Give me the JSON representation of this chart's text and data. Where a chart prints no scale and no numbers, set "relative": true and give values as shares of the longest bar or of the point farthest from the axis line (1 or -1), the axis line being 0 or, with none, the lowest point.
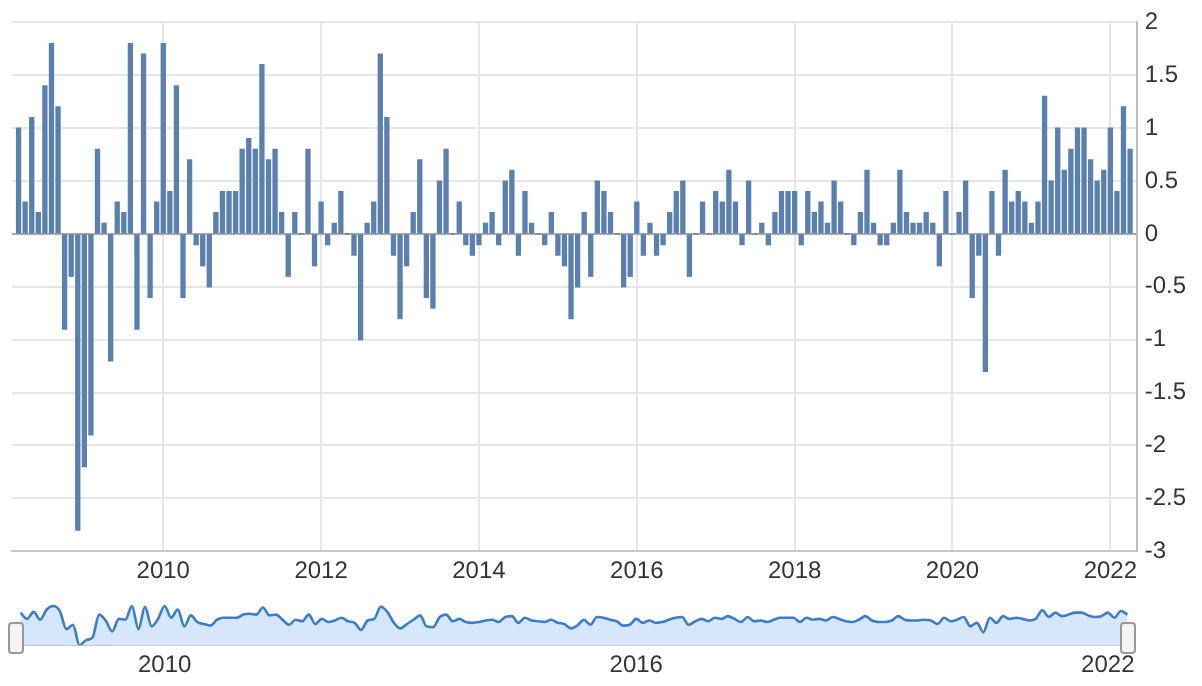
{
  "chart_data": [
    {
      "type": "bar",
      "color": "#5b80ad",
      "ylim": [
        -3,
        2
      ],
      "yticks": [
        -3,
        -2.5,
        -2,
        -1.5,
        -1,
        -0.5,
        0,
        0.5,
        1,
        1.5,
        2
      ],
      "xlim": [
        "2008-02",
        "2022-05"
      ],
      "xticks": [
        "2010",
        "2012",
        "2014",
        "2016",
        "2018",
        "2020",
        "2022"
      ],
      "grid": true,
      "legend": false,
      "x": [
        "2008-03",
        "2008-04",
        "2008-05",
        "2008-06",
        "2008-07",
        "2008-08",
        "2008-09",
        "2008-10",
        "2008-11",
        "2008-12",
        "2009-01",
        "2009-02",
        "2009-03",
        "2009-04",
        "2009-05",
        "2009-06",
        "2009-07",
        "2009-08",
        "2009-09",
        "2009-10",
        "2009-11",
        "2009-12",
        "2010-01",
        "2010-02",
        "2010-03",
        "2010-04",
        "2010-05",
        "2010-06",
        "2010-07",
        "2010-08",
        "2010-09",
        "2010-10",
        "2010-11",
        "2010-12",
        "2011-01",
        "2011-02",
        "2011-03",
        "2011-04",
        "2011-05",
        "2011-06",
        "2011-07",
        "2011-08",
        "2011-09",
        "2011-10",
        "2011-11",
        "2011-12",
        "2012-01",
        "2012-02",
        "2012-03",
        "2012-04",
        "2012-05",
        "2012-06",
        "2012-07",
        "2012-08",
        "2012-09",
        "2012-10",
        "2012-11",
        "2012-12",
        "2013-01",
        "2013-02",
        "2013-03",
        "2013-04",
        "2013-05",
        "2013-06",
        "2013-07",
        "2013-08",
        "2013-09",
        "2013-10",
        "2013-11",
        "2013-12",
        "2014-01",
        "2014-02",
        "2014-03",
        "2014-04",
        "2014-05",
        "2014-06",
        "2014-07",
        "2014-08",
        "2014-09",
        "2014-10",
        "2014-11",
        "2014-12",
        "2015-01",
        "2015-02",
        "2015-03",
        "2015-04",
        "2015-05",
        "2015-06",
        "2015-07",
        "2015-08",
        "2015-09",
        "2015-10",
        "2015-11",
        "2015-12",
        "2016-01",
        "2016-02",
        "2016-03",
        "2016-04",
        "2016-05",
        "2016-06",
        "2016-07",
        "2016-08",
        "2016-09",
        "2016-10",
        "2016-11",
        "2016-12",
        "2017-01",
        "2017-02",
        "2017-03",
        "2017-04",
        "2017-05",
        "2017-06",
        "2017-07",
        "2017-08",
        "2017-09",
        "2017-10",
        "2017-11",
        "2017-12",
        "2018-01",
        "2018-02",
        "2018-03",
        "2018-04",
        "2018-05",
        "2018-06",
        "2018-07",
        "2018-08",
        "2018-09",
        "2018-10",
        "2018-11",
        "2018-12",
        "2019-01",
        "2019-02",
        "2019-03",
        "2019-04",
        "2019-05",
        "2019-06",
        "2019-07",
        "2019-08",
        "2019-09",
        "2019-10",
        "2019-11",
        "2019-12",
        "2020-01",
        "2020-02",
        "2020-03",
        "2020-04",
        "2020-05",
        "2020-06",
        "2020-07",
        "2020-08",
        "2020-09",
        "2020-10",
        "2020-11",
        "2020-12",
        "2021-01",
        "2021-02",
        "2021-03",
        "2021-04",
        "2021-05",
        "2021-06",
        "2021-07",
        "2021-08",
        "2021-09",
        "2021-10",
        "2021-11",
        "2021-12",
        "2022-01",
        "2022-02",
        "2022-03",
        "2022-04"
      ],
      "values": [
        1.0,
        0.3,
        1.1,
        0.2,
        1.4,
        1.8,
        1.2,
        -0.9,
        -0.4,
        -2.8,
        -2.2,
        -1.9,
        0.8,
        0.1,
        -1.2,
        0.3,
        0.2,
        1.8,
        -0.9,
        1.7,
        -0.6,
        0.3,
        1.8,
        0.4,
        1.4,
        -0.6,
        0.7,
        -0.1,
        -0.3,
        -0.5,
        0.2,
        0.4,
        0.4,
        0.4,
        0.8,
        0.9,
        0.8,
        1.6,
        0.7,
        0.8,
        0.2,
        -0.4,
        0.2,
        0,
        0.8,
        -0.3,
        0.3,
        -0.1,
        0.1,
        0.4,
        0,
        -0.2,
        -1.0,
        0.1,
        0.3,
        1.7,
        1.1,
        -0.2,
        -0.8,
        -0.3,
        0.2,
        0.7,
        -0.6,
        -0.7,
        0.5,
        0.8,
        0,
        0.3,
        -0.1,
        -0.2,
        -0.1,
        0.1,
        0.2,
        -0.1,
        0.5,
        0.6,
        -0.2,
        0.4,
        0.1,
        0,
        -0.1,
        0.2,
        -0.2,
        -0.3,
        -0.8,
        -0.5,
        0.2,
        -0.4,
        0.5,
        0.4,
        0.2,
        0,
        -0.5,
        -0.4,
        0.3,
        -0.2,
        0.1,
        -0.2,
        -0.1,
        0.2,
        0.4,
        0.5,
        -0.4,
        0,
        0.3,
        0,
        0.4,
        0.3,
        0.6,
        0.3,
        -0.1,
        0.5,
        0,
        0.1,
        -0.1,
        0.2,
        0.4,
        0.4,
        0.4,
        -0.1,
        0.4,
        0.2,
        0.3,
        0.1,
        0.5,
        0.3,
        0,
        -0.1,
        0.2,
        0.6,
        0.1,
        -0.1,
        -0.1,
        0.1,
        0.6,
        0.2,
        0.1,
        0.1,
        0.2,
        0.1,
        -0.3,
        0.4,
        0,
        0.2,
        0.5,
        -0.6,
        -0.2,
        -1.3,
        0.4,
        -0.2,
        0.6,
        0.3,
        0.4,
        0.3,
        0.1,
        0.3,
        1.3,
        0.5,
        1.0,
        0.6,
        0.8,
        1.0,
        1.0,
        0.7,
        0.5,
        0.6,
        1.0,
        0.4,
        1.2,
        0.8
      ]
    },
    {
      "type": "area",
      "relative": true,
      "color": "#3b7dc9",
      "xlim": [
        "2008-02",
        "2022-05"
      ],
      "xticks": [
        "2010",
        "2016",
        "2022"
      ],
      "tick_labels": "x",
      "legend": false,
      "x": [
        "2008-03",
        "2008-04",
        "2008-05",
        "2008-06",
        "2008-07",
        "2008-08",
        "2008-09",
        "2008-10",
        "2008-11",
        "2008-12",
        "2009-01",
        "2009-02",
        "2009-03",
        "2009-04",
        "2009-05",
        "2009-06",
        "2009-07",
        "2009-08",
        "2009-09",
        "2009-10",
        "2009-11",
        "2009-12",
        "2010-01",
        "2010-02",
        "2010-03",
        "2010-04",
        "2010-05",
        "2010-06",
        "2010-07",
        "2010-08",
        "2010-09",
        "2010-10",
        "2010-11",
        "2010-12",
        "2011-01",
        "2011-02",
        "2011-03",
        "2011-04",
        "2011-05",
        "2011-06",
        "2011-07",
        "2011-08",
        "2011-09",
        "2011-10",
        "2011-11",
        "2011-12",
        "2012-01",
        "2012-02",
        "2012-03",
        "2012-04",
        "2012-05",
        "2012-06",
        "2012-07",
        "2012-08",
        "2012-09",
        "2012-10",
        "2012-11",
        "2012-12",
        "2013-01",
        "2013-02",
        "2013-03",
        "2013-04",
        "2013-05",
        "2013-06",
        "2013-07",
        "2013-08",
        "2013-09",
        "2013-10",
        "2013-11",
        "2013-12",
        "2014-01",
        "2014-02",
        "2014-03",
        "2014-04",
        "2014-05",
        "2014-06",
        "2014-07",
        "2014-08",
        "2014-09",
        "2014-10",
        "2014-11",
        "2014-12",
        "2015-01",
        "2015-02",
        "2015-03",
        "2015-04",
        "2015-05",
        "2015-06",
        "2015-07",
        "2015-08",
        "2015-09",
        "2015-10",
        "2015-11",
        "2015-12",
        "2016-01",
        "2016-02",
        "2016-03",
        "2016-04",
        "2016-05",
        "2016-06",
        "2016-07",
        "2016-08",
        "2016-09",
        "2016-10",
        "2016-11",
        "2016-12",
        "2017-01",
        "2017-02",
        "2017-03",
        "2017-04",
        "2017-05",
        "2017-06",
        "2017-07",
        "2017-08",
        "2017-09",
        "2017-10",
        "2017-11",
        "2017-12",
        "2018-01",
        "2018-02",
        "2018-03",
        "2018-04",
        "2018-05",
        "2018-06",
        "2018-07",
        "2018-08",
        "2018-09",
        "2018-10",
        "2018-11",
        "2018-12",
        "2019-01",
        "2019-02",
        "2019-03",
        "2019-04",
        "2019-05",
        "2019-06",
        "2019-07",
        "2019-08",
        "2019-09",
        "2019-10",
        "2019-11",
        "2019-12",
        "2020-01",
        "2020-02",
        "2020-03",
        "2020-04",
        "2020-05",
        "2020-06",
        "2020-07",
        "2020-08",
        "2020-09",
        "2020-10",
        "2020-11",
        "2020-12",
        "2021-01",
        "2021-02",
        "2021-03",
        "2021-04",
        "2021-05",
        "2021-06",
        "2021-07",
        "2021-08",
        "2021-09",
        "2021-10",
        "2021-11",
        "2021-12",
        "2022-01",
        "2022-02",
        "2022-03",
        "2022-04"
      ],
      "values": [
        0.83,
        0.67,
        0.85,
        0.65,
        0.91,
        1,
        0.87,
        0.41,
        0.52,
        0,
        0.13,
        0.2,
        0.78,
        0.63,
        0.35,
        0.67,
        0.65,
        1,
        0.41,
        0.98,
        0.48,
        0.67,
        1,
        0.7,
        0.91,
        0.48,
        0.76,
        0.59,
        0.54,
        0.5,
        0.65,
        0.7,
        0.7,
        0.7,
        0.78,
        0.8,
        0.78,
        0.96,
        0.76,
        0.78,
        0.65,
        0.52,
        0.65,
        0.61,
        0.78,
        0.54,
        0.67,
        0.59,
        0.63,
        0.7,
        0.61,
        0.57,
        0.39,
        0.63,
        0.67,
        0.98,
        0.85,
        0.57,
        0.43,
        0.54,
        0.65,
        0.76,
        0.48,
        0.46,
        0.72,
        0.78,
        0.61,
        0.67,
        0.59,
        0.57,
        0.59,
        0.63,
        0.65,
        0.59,
        0.72,
        0.74,
        0.57,
        0.7,
        0.63,
        0.61,
        0.59,
        0.65,
        0.57,
        0.54,
        0.43,
        0.5,
        0.65,
        0.52,
        0.72,
        0.7,
        0.65,
        0.61,
        0.5,
        0.52,
        0.67,
        0.57,
        0.63,
        0.57,
        0.59,
        0.65,
        0.7,
        0.72,
        0.52,
        0.61,
        0.67,
        0.61,
        0.7,
        0.67,
        0.74,
        0.67,
        0.59,
        0.72,
        0.61,
        0.63,
        0.59,
        0.65,
        0.7,
        0.7,
        0.7,
        0.59,
        0.7,
        0.65,
        0.67,
        0.63,
        0.72,
        0.67,
        0.61,
        0.59,
        0.65,
        0.74,
        0.63,
        0.59,
        0.59,
        0.63,
        0.74,
        0.65,
        0.63,
        0.63,
        0.65,
        0.63,
        0.54,
        0.7,
        0.61,
        0.65,
        0.72,
        0.48,
        0.57,
        0.33,
        0.7,
        0.57,
        0.74,
        0.67,
        0.7,
        0.67,
        0.63,
        0.67,
        0.89,
        0.72,
        0.83,
        0.74,
        0.78,
        0.83,
        0.83,
        0.76,
        0.72,
        0.74,
        0.83,
        0.7,
        0.87,
        0.78
      ]
    }
  ]
}
